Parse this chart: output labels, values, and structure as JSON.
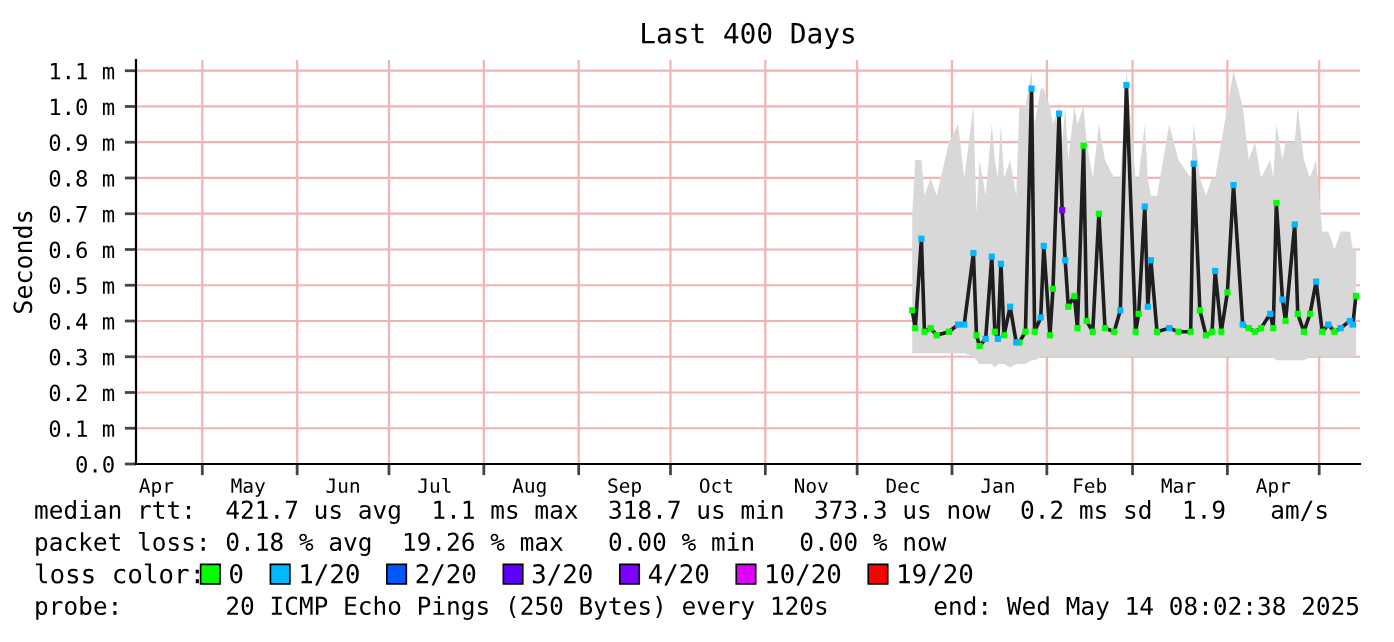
{
  "chart_data": {
    "type": "line",
    "title": "Last 400 Days",
    "ylabel": "Seconds",
    "xlim": [
      "2024-04-09T08:02",
      "2025-05-14T08:02"
    ],
    "xticks": [
      {
        "value": "2024-05-01",
        "label": null
      },
      {
        "value": "2024-06-01",
        "label": null
      },
      {
        "value": "2024-07-01",
        "label": null
      },
      {
        "value": "2024-08-01",
        "label": null
      },
      {
        "value": "2024-09-01",
        "label": null
      },
      {
        "value": "2024-10-01",
        "label": null
      },
      {
        "value": "2024-11-01",
        "label": null
      },
      {
        "value": "2024-12-01",
        "label": null
      },
      {
        "value": "2025-01-01",
        "label": null
      },
      {
        "value": "2025-02-01",
        "label": null
      },
      {
        "value": "2025-03-01",
        "label": null
      },
      {
        "value": "2025-04-01",
        "label": null
      },
      {
        "value": "2025-05-01",
        "label": null
      },
      {
        "value": "2024-04-16",
        "label": "Apr"
      },
      {
        "value": "2024-05-16",
        "label": "May"
      },
      {
        "value": "2024-06-16",
        "label": "Jun"
      },
      {
        "value": "2024-07-16",
        "label": "Jul"
      },
      {
        "value": "2024-08-16",
        "label": "Aug"
      },
      {
        "value": "2024-09-16",
        "label": "Sep"
      },
      {
        "value": "2024-10-16",
        "label": "Oct"
      },
      {
        "value": "2024-11-16",
        "label": "Nov"
      },
      {
        "value": "2024-12-16",
        "label": "Dec"
      },
      {
        "value": "2025-01-16",
        "label": "Jan"
      },
      {
        "value": "2025-02-15",
        "label": "Feb"
      },
      {
        "value": "2025-03-16",
        "label": "Mar"
      },
      {
        "value": "2025-04-16",
        "label": "Apr"
      }
    ],
    "ylim": [
      0,
      1.13
    ],
    "yticks": [
      {
        "value": 0,
        "label": "0.0"
      },
      {
        "value": 0.1,
        "label": "0.1 m"
      },
      {
        "value": 0.2,
        "label": "0.2 m"
      },
      {
        "value": 0.3,
        "label": "0.3 m"
      },
      {
        "value": 0.4,
        "label": "0.4 m"
      },
      {
        "value": 0.5,
        "label": "0.5 m"
      },
      {
        "value": 0.6,
        "label": "0.6 m"
      },
      {
        "value": 0.7,
        "label": "0.7 m"
      },
      {
        "value": 0.8,
        "label": "0.8 m"
      },
      {
        "value": 0.9,
        "label": "0.9 m"
      },
      {
        "value": 1.0,
        "label": "1.0 m"
      },
      {
        "value": 1.1,
        "label": "1.1 m"
      }
    ],
    "grid": true,
    "legend": "bottom",
    "legend_title": "loss color:",
    "x": [
      "2024-12-19",
      "2024-12-20",
      "2024-12-22",
      "2024-12-23",
      "2024-12-25",
      "2024-12-27",
      "2024-12-31",
      "2025-01-03",
      "2025-01-05",
      "2025-01-08",
      "2025-01-09",
      "2025-01-10",
      "2025-01-12",
      "2025-01-14",
      "2025-01-15",
      "2025-01-16",
      "2025-01-17",
      "2025-01-18",
      "2025-01-20",
      "2025-01-22",
      "2025-01-23",
      "2025-01-25",
      "2025-01-27",
      "2025-01-28",
      "2025-01-30",
      "2025-01-31",
      "2025-02-02",
      "2025-02-03",
      "2025-02-05",
      "2025-02-06",
      "2025-02-07",
      "2025-02-08",
      "2025-02-10",
      "2025-02-11",
      "2025-02-13",
      "2025-02-14",
      "2025-02-16",
      "2025-02-18",
      "2025-02-20",
      "2025-02-23",
      "2025-02-25",
      "2025-02-27",
      "2025-03-02",
      "2025-03-03",
      "2025-03-05",
      "2025-03-06",
      "2025-03-07",
      "2025-03-09",
      "2025-03-13",
      "2025-03-16",
      "2025-03-20",
      "2025-03-21",
      "2025-03-23",
      "2025-03-25",
      "2025-03-27",
      "2025-03-28",
      "2025-03-30",
      "2025-04-01",
      "2025-04-03",
      "2025-04-06",
      "2025-04-08",
      "2025-04-10",
      "2025-04-12",
      "2025-04-15",
      "2025-04-16",
      "2025-04-17",
      "2025-04-19",
      "2025-04-20",
      "2025-04-23",
      "2025-04-24",
      "2025-04-26",
      "2025-04-28",
      "2025-04-30",
      "2025-05-02",
      "2025-05-04",
      "2025-05-06",
      "2025-05-08",
      "2025-05-11",
      "2025-05-12",
      "2025-05-13"
    ],
    "series": [
      {
        "color": "#1e1e1e",
        "values": [
          0.43,
          0.38,
          0.63,
          0.37,
          0.38,
          0.36,
          0.37,
          0.39,
          0.39,
          0.59,
          0.36,
          0.33,
          0.35,
          0.58,
          0.37,
          0.35,
          0.56,
          0.36,
          0.44,
          0.34,
          0.34,
          0.37,
          1.05,
          0.37,
          0.41,
          0.61,
          0.36,
          0.49,
          0.98,
          0.71,
          0.57,
          0.44,
          0.47,
          0.38,
          0.89,
          0.4,
          0.37,
          0.7,
          0.38,
          0.37,
          0.43,
          1.06,
          0.37,
          0.42,
          0.72,
          0.44,
          0.57,
          0.37,
          0.38,
          0.37,
          0.37,
          0.84,
          0.43,
          0.36,
          0.37,
          0.54,
          0.37,
          0.48,
          0.78,
          0.39,
          0.38,
          0.37,
          0.38,
          0.42,
          0.38,
          0.73,
          0.46,
          0.4,
          0.67,
          0.42,
          0.37,
          0.42,
          0.51,
          0.37,
          0.39,
          0.37,
          0.38,
          0.4,
          0.39,
          0.47
        ],
        "lower": [
          0.31,
          0.31,
          0.31,
          0.31,
          0.31,
          0.31,
          0.31,
          0.31,
          0.31,
          0.3,
          0.29,
          0.28,
          0.28,
          0.28,
          0.27,
          0.28,
          0.28,
          0.28,
          0.27,
          0.28,
          0.28,
          0.28,
          0.29,
          0.29,
          0.3,
          0.3,
          0.3,
          0.3,
          0.3,
          0.3,
          0.3,
          0.3,
          0.3,
          0.3,
          0.3,
          0.3,
          0.3,
          0.3,
          0.3,
          0.3,
          0.3,
          0.3,
          0.3,
          0.3,
          0.3,
          0.3,
          0.3,
          0.3,
          0.3,
          0.3,
          0.3,
          0.3,
          0.3,
          0.3,
          0.3,
          0.3,
          0.3,
          0.3,
          0.3,
          0.3,
          0.3,
          0.3,
          0.3,
          0.3,
          0.3,
          0.29,
          0.29,
          0.29,
          0.29,
          0.29,
          0.29,
          0.3,
          0.3,
          0.3,
          0.3,
          0.3,
          0.3,
          0.3,
          0.3,
          0.3
        ],
        "upper": [
          0.7,
          0.85,
          0.85,
          0.75,
          0.8,
          0.75,
          0.9,
          0.95,
          0.8,
          1.0,
          0.7,
          0.85,
          0.75,
          0.95,
          0.85,
          0.8,
          0.95,
          0.8,
          0.85,
          0.75,
          1.0,
          1.0,
          1.1,
          0.95,
          1.05,
          1.05,
          1.0,
          0.95,
          1.0,
          0.9,
          1.0,
          0.85,
          1.0,
          0.95,
          1.0,
          0.9,
          0.8,
          0.95,
          0.85,
          0.8,
          0.8,
          1.1,
          0.8,
          0.8,
          0.95,
          0.8,
          0.75,
          0.75,
          0.95,
          0.85,
          0.8,
          0.95,
          0.8,
          0.75,
          0.8,
          0.8,
          0.9,
          1.0,
          1.1,
          1.0,
          0.85,
          0.9,
          0.8,
          0.85,
          0.8,
          0.95,
          0.85,
          0.9,
          0.9,
          1.0,
          0.85,
          0.8,
          0.85,
          0.65,
          0.65,
          0.6,
          0.65,
          0.65,
          0.6,
          0.6
        ]
      },
      {
        "type": "scatter",
        "name": "0",
        "color": "#00ff00",
        "values": [
          0.43,
          0.38,
          null,
          0.37,
          0.38,
          0.36,
          0.37,
          null,
          null,
          null,
          0.36,
          0.33,
          null,
          null,
          0.37,
          null,
          null,
          0.36,
          null,
          null,
          0.34,
          0.37,
          null,
          0.37,
          null,
          null,
          0.36,
          0.49,
          null,
          null,
          null,
          0.44,
          0.47,
          0.38,
          0.89,
          0.4,
          0.37,
          0.7,
          0.38,
          0.37,
          null,
          null,
          0.37,
          0.42,
          null,
          null,
          null,
          0.37,
          null,
          0.37,
          0.37,
          null,
          0.43,
          0.36,
          0.37,
          null,
          0.37,
          0.48,
          null,
          null,
          0.38,
          0.37,
          0.38,
          null,
          0.38,
          0.73,
          null,
          0.4,
          null,
          0.42,
          0.37,
          0.42,
          null,
          0.37,
          null,
          0.37,
          null,
          null,
          null,
          0.47
        ]
      },
      {
        "type": "scatter",
        "name": "1/20",
        "color": "#00b8ff",
        "values": [
          null,
          null,
          0.63,
          null,
          null,
          null,
          null,
          0.39,
          0.39,
          0.59,
          null,
          null,
          0.35,
          0.58,
          null,
          0.35,
          0.56,
          null,
          0.44,
          0.34,
          null,
          null,
          1.05,
          null,
          0.41,
          0.61,
          null,
          null,
          0.98,
          null,
          0.57,
          null,
          null,
          null,
          null,
          null,
          null,
          null,
          null,
          null,
          0.43,
          1.06,
          null,
          null,
          0.72,
          0.44,
          0.57,
          null,
          0.38,
          null,
          null,
          0.84,
          null,
          null,
          null,
          0.54,
          null,
          null,
          0.78,
          0.39,
          null,
          null,
          null,
          0.42,
          null,
          null,
          0.46,
          null,
          0.67,
          null,
          null,
          null,
          0.51,
          null,
          0.39,
          null,
          0.38,
          0.4,
          0.39,
          null
        ]
      },
      {
        "type": "scatter",
        "name": "2/20",
        "color": "#0059ff",
        "values": [
          null,
          null,
          null,
          null,
          null,
          null,
          null,
          null,
          null,
          null,
          null,
          null,
          null,
          null,
          null,
          null,
          null,
          null,
          null,
          null,
          null,
          null,
          null,
          null,
          null,
          null,
          null,
          null,
          null,
          null,
          null,
          null,
          null,
          null,
          null,
          null,
          null,
          null,
          null,
          null,
          null,
          null,
          null,
          null,
          null,
          null,
          null,
          null,
          null,
          null,
          null,
          null,
          null,
          null,
          null,
          null,
          null,
          null,
          null,
          null,
          null,
          null,
          null,
          null,
          null,
          null,
          null,
          null,
          null,
          null,
          null,
          null,
          null,
          null,
          null,
          null,
          null,
          null,
          null,
          null
        ]
      },
      {
        "type": "scatter",
        "name": "3/20",
        "color": "#5e00ff",
        "values": [
          null,
          null,
          null,
          null,
          null,
          null,
          null,
          null,
          null,
          null,
          null,
          null,
          null,
          null,
          null,
          null,
          null,
          null,
          null,
          null,
          null,
          null,
          null,
          null,
          null,
          null,
          null,
          null,
          null,
          null,
          null,
          null,
          null,
          null,
          null,
          null,
          null,
          null,
          null,
          null,
          null,
          null,
          null,
          null,
          null,
          null,
          null,
          null,
          null,
          null,
          null,
          null,
          null,
          null,
          null,
          null,
          null,
          null,
          null,
          null,
          null,
          null,
          null,
          null,
          null,
          null,
          null,
          null,
          null,
          null,
          null,
          null,
          null,
          null,
          null,
          null,
          null,
          null,
          null,
          null
        ]
      },
      {
        "type": "scatter",
        "name": "4/20",
        "color": "#7e00ff",
        "x": [
          "2025-02-06"
        ],
        "values": [
          0.71
        ]
      },
      {
        "type": "scatter",
        "name": "10/20",
        "color": "#dd00ff",
        "values": [
          null,
          null,
          null,
          null,
          null,
          null,
          null,
          null,
          null,
          null,
          null,
          null,
          null,
          null,
          null,
          null,
          null,
          null,
          null,
          null,
          null,
          null,
          null,
          null,
          null,
          null,
          null,
          null,
          null,
          null,
          null,
          null,
          null,
          null,
          null,
          null,
          null,
          null,
          null,
          null,
          null,
          null,
          null,
          null,
          null,
          null,
          null,
          null,
          null,
          null,
          null,
          null,
          null,
          null,
          null,
          null,
          null,
          null,
          null,
          null,
          null,
          null,
          null,
          null,
          null,
          null,
          null,
          null,
          null,
          null,
          null,
          null,
          null,
          null,
          null,
          null,
          null,
          null,
          null,
          null
        ]
      },
      {
        "type": "scatter",
        "name": "19/20",
        "color": "#ff0000",
        "values": [
          null,
          null,
          null,
          null,
          null,
          null,
          null,
          null,
          null,
          null,
          null,
          null,
          null,
          null,
          null,
          null,
          null,
          null,
          null,
          null,
          null,
          null,
          null,
          null,
          null,
          null,
          null,
          null,
          null,
          null,
          null,
          null,
          null,
          null,
          null,
          null,
          null,
          null,
          null,
          null,
          null,
          null,
          null,
          null,
          null,
          null,
          null,
          null,
          null,
          null,
          null,
          null,
          null,
          null,
          null,
          null,
          null,
          null,
          null,
          null,
          null,
          null,
          null,
          null,
          null,
          null,
          null,
          null,
          null,
          null,
          null,
          null,
          null,
          null,
          null,
          null,
          null,
          null,
          null,
          null
        ]
      }
    ],
    "annotations": [
      "median rtt:  421.7 us avg  1.1 ms max  318.7 us min  373.3 us now  0.2 ms sd  1.9   am/s",
      "packet loss: 0.18 % avg  19.26 % max   0.00 % min   0.00 % now",
      "probe:       20 ICMP Echo Pings (250 Bytes) every 120s",
      "end: Wed May 14 08:02:38 2025"
    ]
  }
}
